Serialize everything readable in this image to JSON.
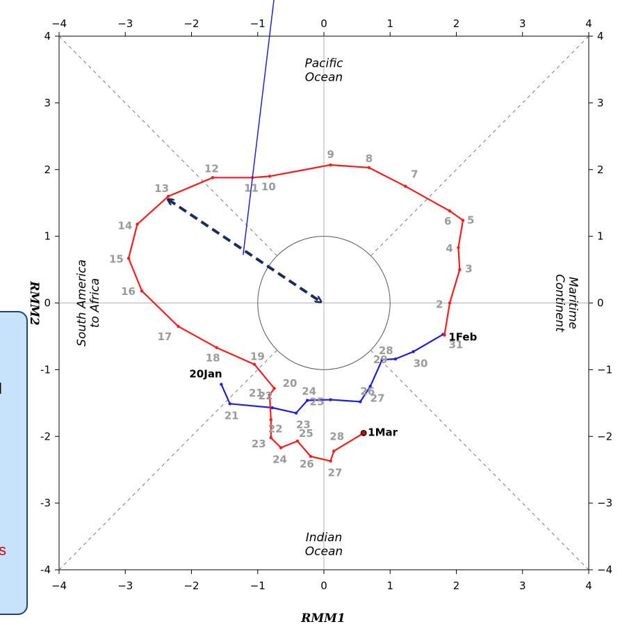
{
  "chart_data": {
    "type": "line",
    "xlabel": "RMM1",
    "ylabel": "RMM2",
    "xlim": [
      -4,
      4
    ],
    "ylim": [
      -4,
      4
    ],
    "x_ticks": [
      "−4",
      "−3",
      "−2",
      "−1",
      "0",
      "1",
      "2",
      "3",
      "4"
    ],
    "y_ticks_left": [
      "−4",
      "−3",
      "−2",
      "−1",
      "0",
      "1",
      "2",
      "3",
      "4"
    ],
    "y_ticks_right": [
      "−4",
      "−3",
      "−2",
      "−1",
      "0",
      "1",
      "2",
      "3",
      "4"
    ],
    "left_tick_labels": [
      "-4",
      "-3",
      "-2",
      "-1",
      "0",
      "1",
      "2",
      "3",
      "4"
    ],
    "regions": {
      "top": [
        "Pacific",
        "Ocean"
      ],
      "bottom": [
        "Indian",
        "Ocean"
      ],
      "left": [
        "South America",
        "to Africa"
      ],
      "right": [
        "Maritime",
        "Continent"
      ]
    },
    "unit_circle_radius": 1,
    "grid": "diagonal phase lines + axes",
    "series": [
      {
        "color": "#1e1ee6",
        "points": [
          {
            "label": "20Jan",
            "x": -1.55,
            "y": -1.22
          },
          {
            "label": "21",
            "x": -1.42,
            "y": -1.51
          },
          {
            "label": "22",
            "x": -0.78,
            "y": -1.57
          },
          {
            "label": "23",
            "x": -0.42,
            "y": -1.65
          },
          {
            "label": "24",
            "x": -0.25,
            "y": -1.46
          },
          {
            "label": "25",
            "x": 0.1,
            "y": -1.45
          },
          {
            "label": "26",
            "x": 0.55,
            "y": -1.48
          },
          {
            "label": "27",
            "x": 0.7,
            "y": -1.25
          },
          {
            "label": "28",
            "x": 0.88,
            "y": -0.85
          },
          {
            "label": "29",
            "x": 1.08,
            "y": -0.84
          },
          {
            "label": "30",
            "x": 1.35,
            "y": -0.73
          },
          {
            "label": "31",
            "x": 1.8,
            "y": -0.47
          }
        ]
      },
      {
        "color": "#ff1a1a",
        "points": [
          {
            "label": "1Feb",
            "x": 1.82,
            "y": -0.48
          },
          {
            "label": "2",
            "x": 1.9,
            "y": 0.0
          },
          {
            "label": "3",
            "x": 2.05,
            "y": 0.5
          },
          {
            "label": "4",
            "x": 2.03,
            "y": 0.83
          },
          {
            "label": "5",
            "x": 2.1,
            "y": 1.24
          },
          {
            "label": "6",
            "x": 1.9,
            "y": 1.38
          },
          {
            "label": "7",
            "x": 1.23,
            "y": 1.75
          },
          {
            "label": "8",
            "x": 0.68,
            "y": 2.03
          },
          {
            "label": "9",
            "x": 0.1,
            "y": 2.07
          },
          {
            "label": "10",
            "x": -0.82,
            "y": 1.9
          },
          {
            "label": "11",
            "x": -1.08,
            "y": 1.88
          },
          {
            "label": "12",
            "x": -1.68,
            "y": 1.88
          },
          {
            "label": "13",
            "x": -2.35,
            "y": 1.6
          },
          {
            "label": "14",
            "x": -2.82,
            "y": 1.18
          },
          {
            "label": "15",
            "x": -2.95,
            "y": 0.67
          },
          {
            "label": "16",
            "x": -2.75,
            "y": 0.18
          },
          {
            "label": "17",
            "x": -2.2,
            "y": -0.35
          },
          {
            "label": "18",
            "x": -1.62,
            "y": -0.67
          },
          {
            "label": "19",
            "x": -1.05,
            "y": -0.92
          },
          {
            "label": "20",
            "x": -0.75,
            "y": -1.28
          },
          {
            "label": "21",
            "x": -0.82,
            "y": -1.38
          },
          {
            "label": "22",
            "x": -0.8,
            "y": -1.75
          },
          {
            "label": "23",
            "x": -0.8,
            "y": -2.02
          },
          {
            "label": "24",
            "x": -0.65,
            "y": -2.17
          },
          {
            "label": "25",
            "x": -0.4,
            "y": -2.07
          },
          {
            "label": "26",
            "x": -0.2,
            "y": -2.3
          },
          {
            "label": "27",
            "x": 0.1,
            "y": -2.37
          },
          {
            "label": "28",
            "x": 0.15,
            "y": -2.22
          },
          {
            "label": "1Mar",
            "x": 0.6,
            "y": -1.95
          }
        ]
      }
    ],
    "annotations": {
      "amplitude_arrow": {
        "from": [
          -2.35,
          1.55
        ],
        "to": [
          -0.05,
          0.02
        ],
        "color": "#1c2b5e",
        "style": "dashed double-headed"
      },
      "pointer_line": {
        "from": [
          -0.7,
          5.0
        ],
        "to": [
          -1.22,
          0.72
        ],
        "color": "#1e1ee6"
      }
    },
    "callout_text": [
      "l",
      "s"
    ]
  }
}
